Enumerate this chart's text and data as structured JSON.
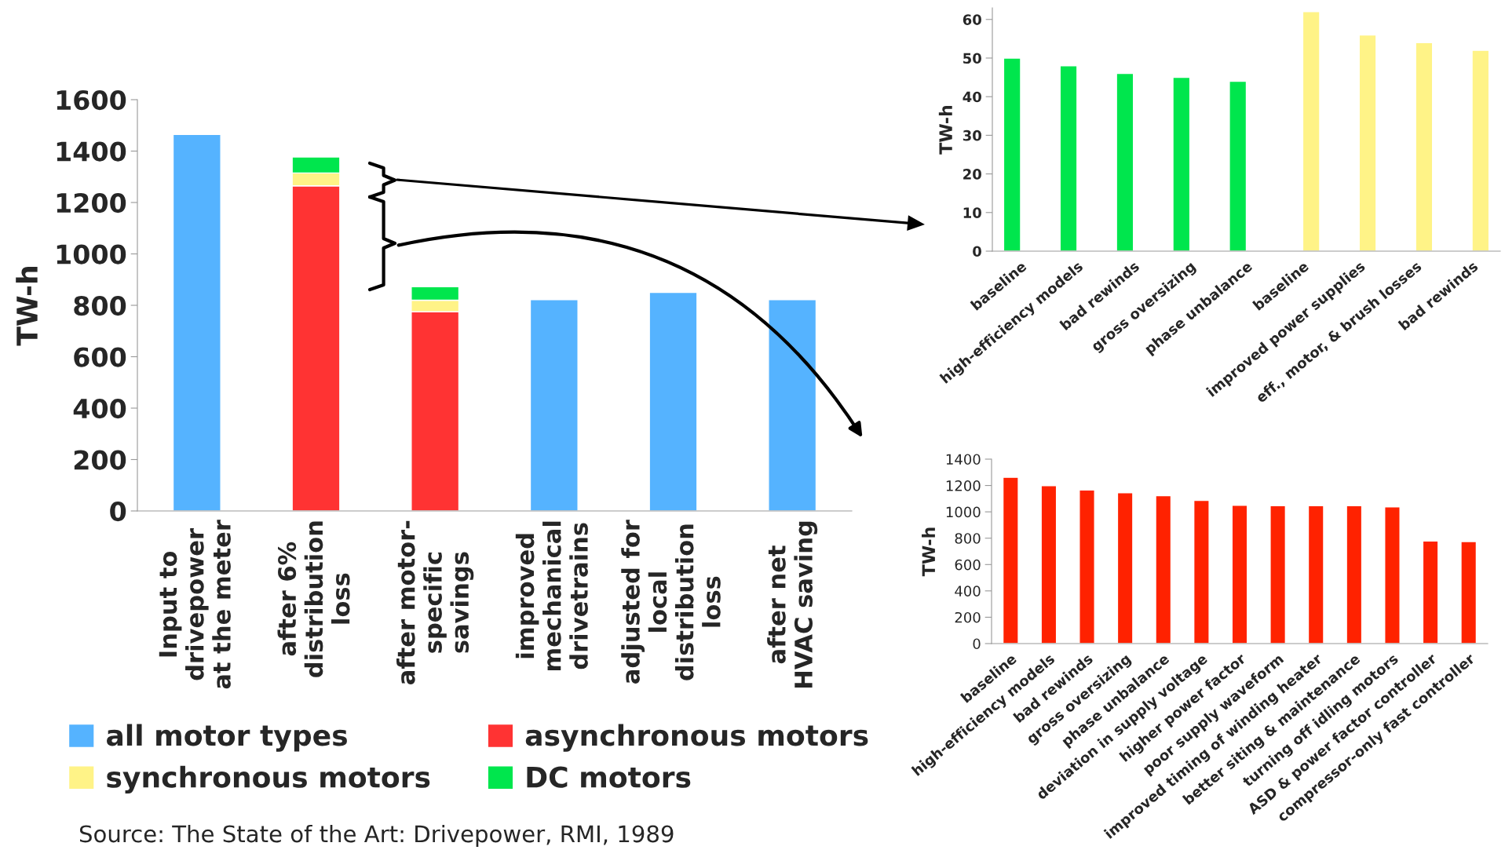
{
  "chart_data": [
    {
      "type": "bar",
      "stacked": true,
      "ylabel": "TW-h",
      "categories": [
        "Input to\ndrivepower\nat the meter",
        "after 6%\ndistribution\nloss",
        "after motor-\nspecific\nsavings",
        "improved\nmechanical\ndrivetrains",
        "adjusted for\nlocal\ndistribution\nloss",
        "after net\nHVAC saving"
      ],
      "series": [
        {
          "name": "all motor types",
          "color": "#55b3ff",
          "values": [
            1465,
            null,
            null,
            822,
            850,
            822
          ]
        },
        {
          "name": "asynchronous motors",
          "color": "#ff3333",
          "values": [
            null,
            1265,
            775,
            null,
            null,
            null
          ]
        },
        {
          "name": "synchronous motors",
          "color": "#fff387",
          "values": [
            null,
            50,
            45,
            null,
            null,
            null
          ]
        },
        {
          "name": "DC motors",
          "color": "#00e64d",
          "values": [
            null,
            62,
            52,
            null,
            null,
            null
          ]
        }
      ],
      "ylim": [
        0,
        1600
      ],
      "yticks": [
        0,
        200,
        400,
        600,
        800,
        1000,
        1200,
        1400,
        1600
      ],
      "grid": false,
      "legend": "bottom",
      "annotations": [
        "Source: The State of the Art: Drivepower, RMI, 1989"
      ]
    },
    {
      "type": "bar",
      "ylabel": "TW-h",
      "categories": [
        "baseline",
        "high-efficiency models",
        "bad rewinds",
        "gross oversizing",
        "phase unbalance",
        "baseline",
        "improved power supplies",
        "eff., motor, & brush losses",
        "bad rewinds"
      ],
      "series": [
        {
          "color": "#00e64d",
          "values": [
            50,
            48,
            46,
            45,
            44,
            null,
            null,
            null,
            null
          ]
        },
        {
          "color": "#fff387",
          "values": [
            null,
            null,
            null,
            null,
            null,
            62,
            56,
            54,
            52
          ]
        }
      ],
      "ylim": [
        0,
        63
      ],
      "yticks": [
        0,
        10,
        20,
        30,
        40,
        50,
        60
      ],
      "grid": false
    },
    {
      "type": "bar",
      "ylabel": "TW-h",
      "categories": [
        "baseline",
        "high-efficiency models",
        "bad rewinds",
        "gross oversizing",
        "phase unbalance",
        "deviation in supply voltage",
        "higher power factor",
        "poor supply waveform",
        "improved timing of winding heater",
        "better siting & maintenance",
        "turning off idling motors",
        "ASD & power factor controller",
        "compressor-only fast controller"
      ],
      "series": [
        {
          "color": "#ff2200",
          "values": [
            1262,
            1199,
            1166,
            1145,
            1122,
            1087,
            1049,
            1046,
            1046,
            1046,
            1038,
            779,
            774
          ]
        }
      ],
      "ylim": [
        0,
        1400
      ],
      "yticks": [
        0,
        200,
        400,
        600,
        800,
        1000,
        1200,
        1400
      ],
      "grid": false
    }
  ]
}
